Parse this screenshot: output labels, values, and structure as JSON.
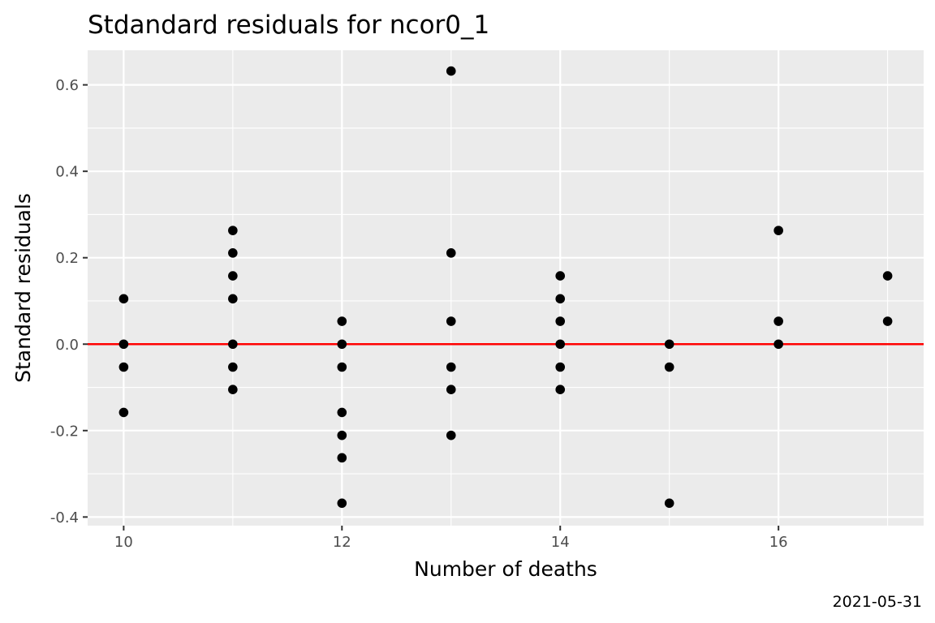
{
  "chart_data": {
    "type": "scatter",
    "title": "Stdandard residuals for ncor0_1",
    "xlabel": "Number of deaths",
    "ylabel": "Standard residuals",
    "caption": "2021-05-31",
    "xlim": [
      9.67,
      17.33
    ],
    "ylim": [
      -0.42,
      0.68
    ],
    "x_ticks": [
      10,
      12,
      14,
      16
    ],
    "x_tick_labels": [
      "10",
      "12",
      "14",
      "16"
    ],
    "x_minor_ticks": [
      11,
      13,
      15,
      17
    ],
    "y_ticks": [
      -0.4,
      -0.2,
      0.0,
      0.2,
      0.4,
      0.6
    ],
    "y_tick_labels": [
      "-0.4",
      "-0.2",
      "0.0",
      "0.2",
      "0.4",
      "0.6"
    ],
    "y_minor_ticks": [
      -0.3,
      -0.1,
      0.1,
      0.3,
      0.5
    ],
    "grid": true,
    "reference_line": {
      "y": 0,
      "color": "#ff0000"
    },
    "colors": {
      "panel_background": "#ebebeb",
      "grid": "#ffffff",
      "points": "#000000",
      "reference_line": "#ff0000",
      "tick_label": "#4d4d4d",
      "tick_mark": "#333333"
    },
    "series": [
      {
        "points": [
          {
            "x": 10,
            "y": 0.105
          },
          {
            "x": 10,
            "y": 0.0
          },
          {
            "x": 10,
            "y": -0.053
          },
          {
            "x": 10,
            "y": -0.158
          },
          {
            "x": 11,
            "y": 0.263
          },
          {
            "x": 11,
            "y": 0.211
          },
          {
            "x": 11,
            "y": 0.158
          },
          {
            "x": 11,
            "y": 0.105
          },
          {
            "x": 11,
            "y": 0.0
          },
          {
            "x": 11,
            "y": -0.053
          },
          {
            "x": 11,
            "y": -0.105
          },
          {
            "x": 12,
            "y": 0.053
          },
          {
            "x": 12,
            "y": 0.0
          },
          {
            "x": 12,
            "y": -0.053
          },
          {
            "x": 12,
            "y": -0.158
          },
          {
            "x": 12,
            "y": -0.211
          },
          {
            "x": 12,
            "y": -0.263
          },
          {
            "x": 12,
            "y": -0.368
          },
          {
            "x": 13,
            "y": 0.632
          },
          {
            "x": 13,
            "y": 0.211
          },
          {
            "x": 13,
            "y": 0.053
          },
          {
            "x": 13,
            "y": -0.053
          },
          {
            "x": 13,
            "y": -0.105
          },
          {
            "x": 13,
            "y": -0.211
          },
          {
            "x": 14,
            "y": 0.158
          },
          {
            "x": 14,
            "y": 0.105
          },
          {
            "x": 14,
            "y": 0.053
          },
          {
            "x": 14,
            "y": 0.0
          },
          {
            "x": 14,
            "y": -0.053
          },
          {
            "x": 14,
            "y": -0.105
          },
          {
            "x": 15,
            "y": 0.0
          },
          {
            "x": 15,
            "y": -0.053
          },
          {
            "x": 15,
            "y": -0.368
          },
          {
            "x": 16,
            "y": 0.263
          },
          {
            "x": 16,
            "y": 0.053
          },
          {
            "x": 16,
            "y": 0.0
          },
          {
            "x": 17,
            "y": 0.158
          },
          {
            "x": 17,
            "y": 0.053
          }
        ]
      }
    ]
  }
}
